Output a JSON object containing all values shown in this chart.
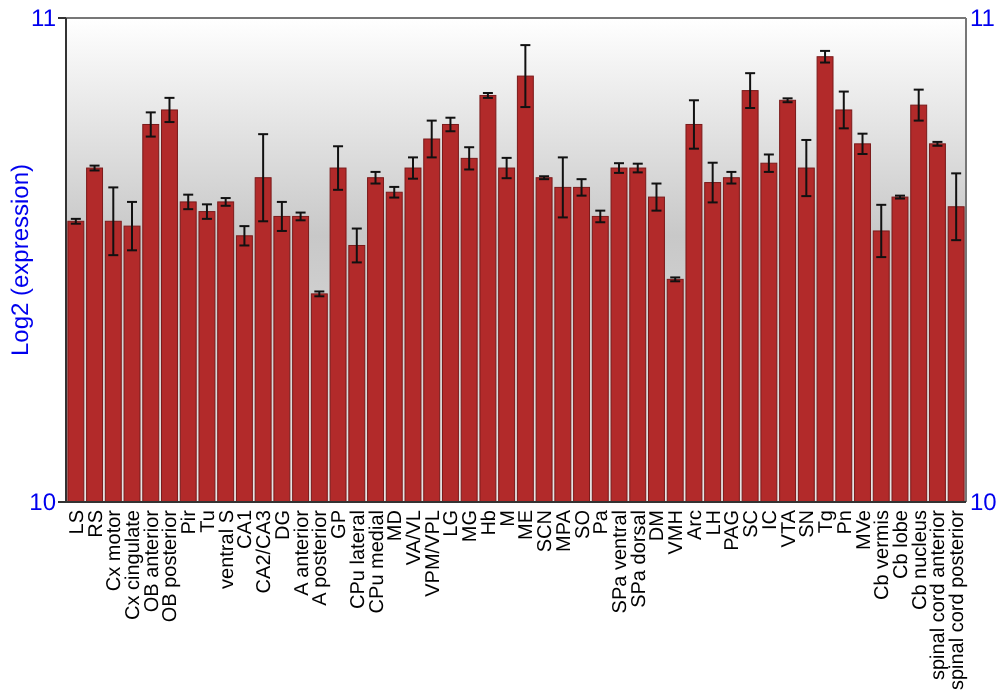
{
  "chart_data": {
    "type": "bar",
    "ylabel": "Log2 (expression)",
    "categories": [
      "LS",
      "RS",
      "Cx motor",
      "Cx cingulate",
      "OB anterior",
      "OB posterior",
      "Pir",
      "Tu",
      "ventral S",
      "CA1",
      "CA2/CA3",
      "DG",
      "A anterior",
      "A posterior",
      "GP",
      "CPu lateral",
      "CPu medial",
      "MD",
      "VA/VL",
      "VPM/VPL",
      "LG",
      "MG",
      "Hb",
      "M",
      "ME",
      "SCN",
      "MPA",
      "SO",
      "Pa",
      "SPa ventral",
      "SPa dorsal",
      "DM",
      "VMH",
      "Arc",
      "LH",
      "PAG",
      "SC",
      "IC",
      "VTA",
      "SN",
      "Tg",
      "Pn",
      "MVe",
      "Cb vermis",
      "Cb lobe",
      "Cb nucleus",
      "spinal cord anterior",
      "spinal cord posterior"
    ],
    "values": [
      10.58,
      10.69,
      10.58,
      10.57,
      10.78,
      10.81,
      10.62,
      10.6,
      10.62,
      10.55,
      10.67,
      10.59,
      10.59,
      10.43,
      10.69,
      10.53,
      10.67,
      10.64,
      10.69,
      10.75,
      10.78,
      10.71,
      10.84,
      10.69,
      10.88,
      10.67,
      10.65,
      10.65,
      10.59,
      10.69,
      10.69,
      10.63,
      10.46,
      10.78,
      10.66,
      10.67,
      10.85,
      10.7,
      10.83,
      10.69,
      10.92,
      10.81,
      10.74,
      10.56,
      10.63,
      10.82,
      10.74,
      10.61
    ],
    "errors": [
      0.005,
      0.005,
      0.07,
      0.05,
      0.025,
      0.025,
      0.015,
      0.015,
      0.008,
      0.02,
      0.09,
      0.03,
      0.008,
      0.005,
      0.045,
      0.035,
      0.012,
      0.011,
      0.022,
      0.038,
      0.014,
      0.023,
      0.005,
      0.021,
      0.064,
      0.003,
      0.062,
      0.017,
      0.012,
      0.01,
      0.009,
      0.028,
      0.004,
      0.05,
      0.041,
      0.012,
      0.036,
      0.018,
      0.004,
      0.058,
      0.012,
      0.038,
      0.021,
      0.054,
      0.003,
      0.032,
      0.004,
      0.069
    ],
    "color": "#b22a2a",
    "ylim": [
      10,
      11
    ],
    "yticks": [
      10,
      11
    ],
    "y2lim": [
      10,
      11
    ],
    "y2ticks": [
      10,
      11
    ]
  }
}
